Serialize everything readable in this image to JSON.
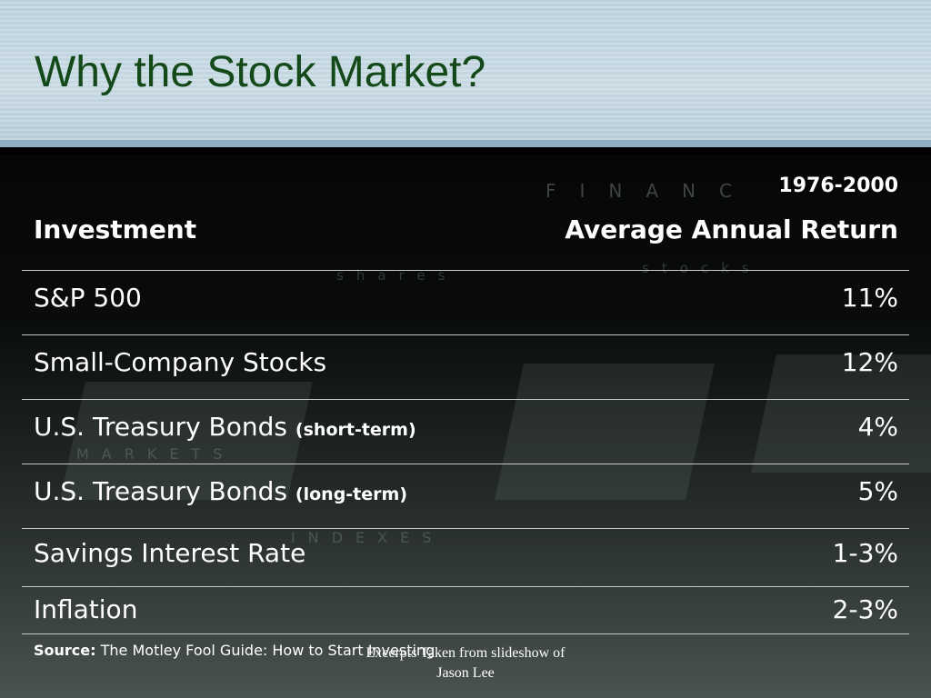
{
  "slide": {
    "title": "Why the Stock Market?"
  },
  "background_words": {
    "finance": "FINANC",
    "shares": "shares",
    "stocks": "stocks",
    "markets": "MARKETS",
    "indexes": "INDEXES"
  },
  "table": {
    "header": {
      "period": "1976-2000",
      "investment_label": "Investment",
      "return_label": "Average Annual Return"
    },
    "rows": [
      {
        "name": "S&P 500",
        "note": "",
        "value": "11%"
      },
      {
        "name": "Small-Company Stocks",
        "note": "",
        "value": "12%"
      },
      {
        "name": "U.S. Treasury Bonds",
        "note": "(short-term)",
        "value": "4%"
      },
      {
        "name": "U.S. Treasury Bonds",
        "note": "(long-term)",
        "value": "5%"
      },
      {
        "name": "Savings Interest Rate",
        "note": "",
        "value": "1-3%"
      },
      {
        "name": "Inflation",
        "note": "",
        "value": "2-3%"
      }
    ]
  },
  "footer": {
    "source_label": "Source:",
    "source_text": "The Motley Fool Guide: How to Start Investing",
    "excerpt_line1": "Excerpts Taken from slideshow of",
    "excerpt_line2": "Jason Lee"
  },
  "colors": {
    "title_text": "#144a1a",
    "title_band": "#c6d8e2",
    "table_text": "#ffffff",
    "row_divider": "#c8c8c8"
  }
}
